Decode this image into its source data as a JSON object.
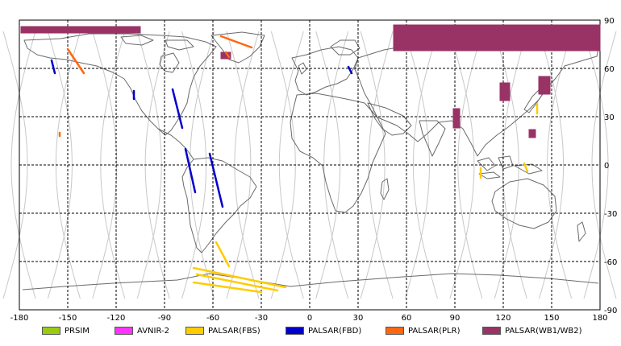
{
  "chart_data": {
    "type": "map",
    "projection": "equirectangular",
    "xlim": [
      -180,
      180
    ],
    "ylim": [
      -90,
      90
    ],
    "x_ticks": [
      -180,
      -150,
      -120,
      -90,
      -60,
      -30,
      0,
      30,
      60,
      90,
      120,
      150,
      180
    ],
    "y_ticks": [
      90,
      60,
      30,
      0,
      -30,
      -60,
      -90
    ],
    "grid": "dashed",
    "legend_placement": "bottom",
    "legend": [
      {
        "label": "PRSIM",
        "color": "#99cc11"
      },
      {
        "label": "AVNIR-2",
        "color": "#ff33ff"
      },
      {
        "label": "PALSAR(FBS)",
        "color": "#ffcc00"
      },
      {
        "label": "PALSAR(FBD)",
        "color": "#0000cc"
      },
      {
        "label": "PALSAR(PLR)",
        "color": "#ff6611"
      },
      {
        "label": "PALSAR(WB1/WB2)",
        "color": "#993366"
      }
    ],
    "strips": [
      {
        "sensor": "PALSAR(FBD)",
        "lon": [
          -62,
          -54
        ],
        "lat": [
          7,
          -26
        ]
      },
      {
        "sensor": "PALSAR(FBD)",
        "lon": [
          -77,
          -71
        ],
        "lat": [
          10,
          -17
        ]
      },
      {
        "sensor": "PALSAR(FBD)",
        "lon": [
          -85,
          -79
        ],
        "lat": [
          47,
          23
        ]
      },
      {
        "sensor": "PALSAR(FBD)",
        "lon": [
          -160,
          -158
        ],
        "lat": [
          65,
          57
        ]
      },
      {
        "sensor": "PALSAR(FBD)",
        "lon": [
          -109,
          -109
        ],
        "lat": [
          46,
          41
        ]
      },
      {
        "sensor": "PALSAR(FBD)",
        "lon": [
          24,
          26
        ],
        "lat": [
          61,
          57
        ]
      },
      {
        "sensor": "PALSAR(FBS)",
        "lon": [
          -58,
          -50
        ],
        "lat": [
          -48,
          -63
        ]
      },
      {
        "sensor": "PALSAR(FBS)",
        "lon": [
          -72,
          -15
        ],
        "lat": [
          -64,
          -76
        ]
      },
      {
        "sensor": "PALSAR(FBS)",
        "lon": [
          -70,
          -20
        ],
        "lat": [
          -68,
          -78
        ]
      },
      {
        "sensor": "PALSAR(FBS)",
        "lon": [
          -72,
          -30
        ],
        "lat": [
          -73,
          -79
        ]
      },
      {
        "sensor": "PALSAR(FBS)",
        "lon": [
          106,
          106
        ],
        "lat": [
          -2,
          -8
        ]
      },
      {
        "sensor": "PALSAR(FBS)",
        "lon": [
          133,
          135
        ],
        "lat": [
          1,
          -4
        ]
      },
      {
        "sensor": "PALSAR(FBS)",
        "lon": [
          141,
          141
        ],
        "lat": [
          38,
          32
        ]
      },
      {
        "sensor": "PALSAR(PLR)",
        "lon": [
          -150,
          -140
        ],
        "lat": [
          72,
          57
        ]
      },
      {
        "sensor": "PALSAR(PLR)",
        "lon": [
          -55,
          -36
        ],
        "lat": [
          80,
          73
        ]
      },
      {
        "sensor": "PALSAR(PLR)",
        "lon": [
          -52,
          -50
        ],
        "lat": [
          70,
          67
        ]
      },
      {
        "sensor": "PALSAR(PLR)",
        "lon": [
          -155,
          -155
        ],
        "lat": [
          20,
          18
        ]
      }
    ],
    "swaths": [
      {
        "sensor": "PALSAR(WB1/WB2)",
        "lon": [
          -179,
          -105
        ],
        "lat": [
          86,
          82
        ]
      },
      {
        "sensor": "PALSAR(WB1/WB2)",
        "lon": [
          52,
          180
        ],
        "lat": [
          87,
          71
        ]
      },
      {
        "sensor": "PALSAR(WB1/WB2)",
        "lon": [
          89,
          93
        ],
        "lat": [
          35,
          23
        ]
      },
      {
        "sensor": "PALSAR(WB1/WB2)",
        "lon": [
          118,
          124
        ],
        "lat": [
          51,
          40
        ]
      },
      {
        "sensor": "PALSAR(WB1/WB2)",
        "lon": [
          142,
          149
        ],
        "lat": [
          55,
          44
        ]
      },
      {
        "sensor": "PALSAR(WB1/WB2)",
        "lon": [
          136,
          140
        ],
        "lat": [
          22,
          17
        ]
      },
      {
        "sensor": "PALSAR(WB1/WB2)",
        "lon": [
          -55,
          -49
        ],
        "lat": [
          70,
          66
        ]
      }
    ]
  }
}
